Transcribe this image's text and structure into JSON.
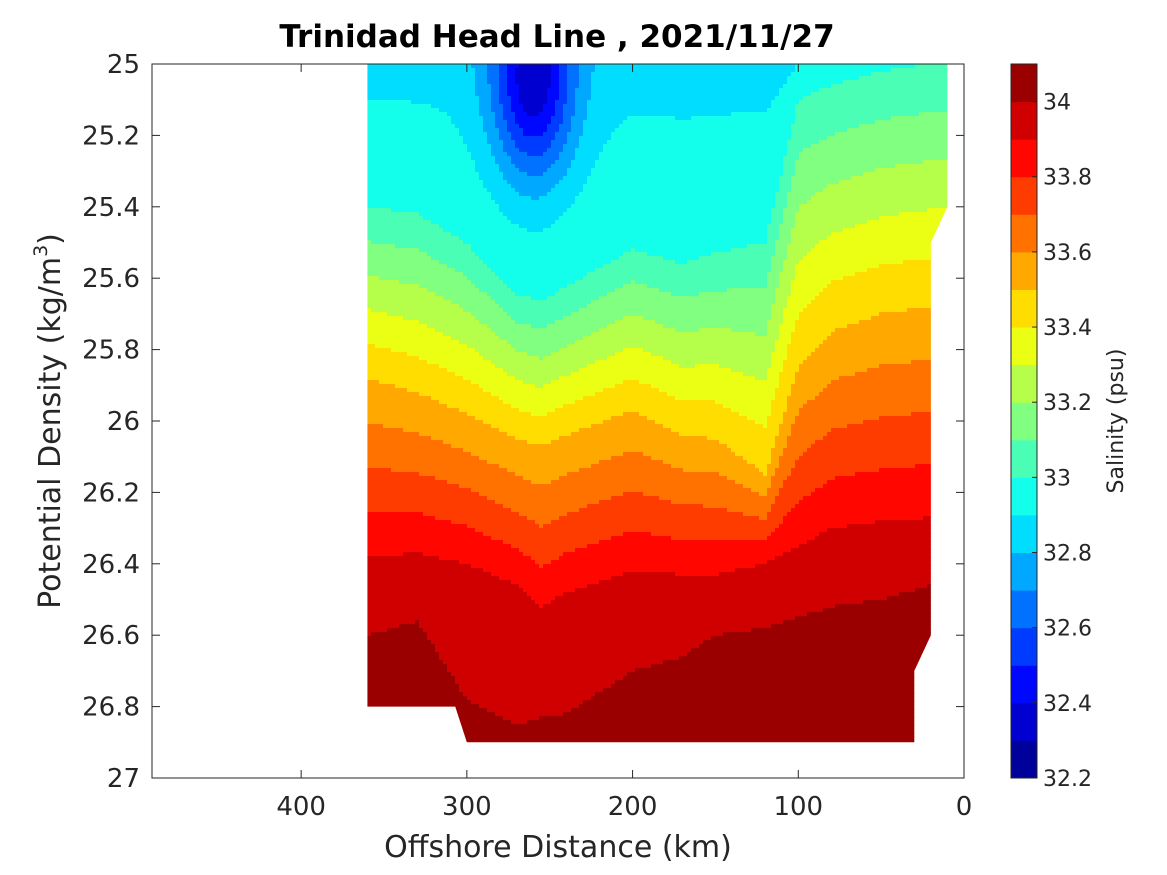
{
  "chart_data": {
    "type": "heatmap",
    "subtype": "filled-contour",
    "title": "Trinidad Head Line , 2021/11/27",
    "xlabel": "Offshore Distance (km)",
    "ylabel_main": "Potential Density (kg/m",
    "ylabel_sup": "3",
    "ylabel_end": ")",
    "xlim": [
      490,
      0
    ],
    "x_reversed": true,
    "ylim": [
      25,
      27
    ],
    "y_reversed": true,
    "xticks": [
      400,
      300,
      200,
      100,
      0
    ],
    "yticks": [
      25,
      25.2,
      25.4,
      25.6,
      25.8,
      26,
      26.2,
      26.4,
      26.6,
      26.8,
      27
    ],
    "colorbar": {
      "label": "Salinity (psu)",
      "min": 32.2,
      "max": 34.1,
      "step": 0.1,
      "ticks": [
        32.2,
        32.4,
        32.6,
        32.8,
        33,
        33.2,
        33.4,
        33.6,
        33.8,
        34
      ],
      "colormap": "jet"
    },
    "grid": false,
    "data_coverage": {
      "x_range": [
        360,
        10
      ],
      "bottom_by_x": [
        [
          360,
          26.8
        ],
        [
          307,
          26.8
        ],
        [
          300,
          26.9
        ],
        [
          30,
          26.9
        ],
        [
          30,
          26.7
        ],
        [
          20,
          26.6
        ],
        [
          20,
          25.5
        ],
        [
          10,
          25.4
        ],
        [
          10,
          25
        ]
      ]
    },
    "section_profile": {
      "x": [
        360,
        330,
        300,
        270,
        255,
        240,
        200,
        170,
        150,
        120,
        100,
        80,
        50,
        20
      ],
      "isohaline_depth_33": [
        25.4,
        25.42,
        25.5,
        25.64,
        25.66,
        25.62,
        25.52,
        25.56,
        25.53,
        25.5,
        25.1,
        25.06,
        25.02,
        25.0
      ],
      "isohaline_depth_33_5": [
        25.88,
        25.92,
        25.98,
        26.05,
        26.07,
        26.04,
        25.97,
        26.04,
        26.05,
        26.15,
        25.85,
        25.75,
        25.7,
        25.68
      ],
      "isohaline_depth_33_9": [
        26.38,
        26.37,
        26.4,
        26.46,
        26.52,
        26.48,
        26.42,
        26.43,
        26.43,
        26.4,
        26.35,
        26.3,
        26.28,
        26.27
      ],
      "isohaline_depth_34": [
        26.6,
        26.56,
        26.78,
        26.85,
        26.83,
        26.82,
        26.7,
        26.66,
        26.6,
        26.58,
        26.55,
        26.52,
        26.5,
        26.46
      ],
      "min_salinity_core": {
        "x": 260,
        "y": 25.05,
        "value": 32.3
      },
      "max_salinity_core": {
        "x": 50,
        "y": 26.86,
        "value": 34.1
      }
    }
  }
}
